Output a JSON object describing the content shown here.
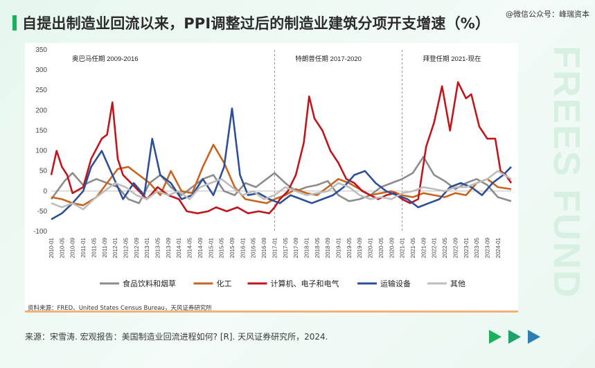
{
  "header": {
    "title": "自提出制造业回流以来，PPI调整过后的制造业建筑分项开支增速（%）"
  },
  "watermark": "@微信公众号：峰瑞资本",
  "side_text": "FREES FUND",
  "source_note": "资料来源：FRED、United  States Census Bureau，天风证券研究所",
  "footer": {
    "citation": "来源：宋雪涛. 宏观报告：美国制造业回流进程如何? [R]. 天风证券研究所，2024."
  },
  "colors": {
    "accent": "#19b25a",
    "arrow1": "#19b25a",
    "arrow2": "#1fa36a",
    "arrow3": "#2a7fb0"
  },
  "chart_data": {
    "type": "line",
    "ylim": [
      -100,
      350
    ],
    "yticks": [
      -100,
      -50,
      0,
      50,
      100,
      150,
      200,
      250,
      300,
      350
    ],
    "xticks": [
      "2010-01",
      "2010-05",
      "2010-09",
      "2011-01",
      "2011-05",
      "2011-09",
      "2012-01",
      "2012-05",
      "2012-09",
      "2013-01",
      "2013-05",
      "2013-09",
      "2014-01",
      "2014-05",
      "2014-09",
      "2015-01",
      "2015-05",
      "2015-09",
      "2016-01",
      "2016-05",
      "2016-09",
      "2017-01",
      "2017-05",
      "2017-09",
      "2018-01",
      "2018-05",
      "2018-09",
      "2019-01",
      "2019-05",
      "2019-09",
      "2020-01",
      "2020-05",
      "2020-09",
      "2021-01",
      "2021-05",
      "2021-09",
      "2022-01",
      "2022-05",
      "2022-09",
      "2023-01",
      "2023-05",
      "2023-09",
      "2024-01"
    ],
    "periods": [
      {
        "label": "奥巴马任期 2009-2016",
        "start": "2010-01"
      },
      {
        "label": "特朗普任期 2017-2020",
        "start": "2017-01"
      },
      {
        "label": "拜登任期 2021-现在",
        "start": "2021-01"
      }
    ],
    "x_start": "2010-01",
    "x_end": "2024-06",
    "series": [
      {
        "name": "食品饮料和烟草",
        "color": "#8c8c8c",
        "points": [
          [
            "2010-01",
            -20
          ],
          [
            "2010-06",
            25
          ],
          [
            "2010-09",
            45
          ],
          [
            "2011-01",
            15
          ],
          [
            "2011-06",
            30
          ],
          [
            "2011-10",
            20
          ],
          [
            "2012-02",
            10
          ],
          [
            "2012-06",
            -20
          ],
          [
            "2012-10",
            -30
          ],
          [
            "2013-02",
            20
          ],
          [
            "2013-06",
            40
          ],
          [
            "2013-10",
            10
          ],
          [
            "2014-02",
            -10
          ],
          [
            "2014-06",
            10
          ],
          [
            "2014-10",
            30
          ],
          [
            "2015-02",
            40
          ],
          [
            "2015-06",
            0
          ],
          [
            "2015-10",
            -10
          ],
          [
            "2016-02",
            20
          ],
          [
            "2016-06",
            10
          ],
          [
            "2016-10",
            30
          ],
          [
            "2017-01",
            45
          ],
          [
            "2017-05",
            20
          ],
          [
            "2017-09",
            0
          ],
          [
            "2018-01",
            10
          ],
          [
            "2018-05",
            15
          ],
          [
            "2018-09",
            25
          ],
          [
            "2019-01",
            -10
          ],
          [
            "2019-05",
            -25
          ],
          [
            "2019-09",
            -20
          ],
          [
            "2020-01",
            -10
          ],
          [
            "2020-05",
            10
          ],
          [
            "2020-09",
            20
          ],
          [
            "2021-01",
            30
          ],
          [
            "2021-05",
            45
          ],
          [
            "2021-09",
            85
          ],
          [
            "2022-01",
            40
          ],
          [
            "2022-05",
            25
          ],
          [
            "2022-09",
            5
          ],
          [
            "2023-01",
            20
          ],
          [
            "2023-05",
            30
          ],
          [
            "2023-09",
            15
          ],
          [
            "2024-01",
            -15
          ],
          [
            "2024-06",
            -25
          ]
        ]
      },
      {
        "name": "化工",
        "color": "#c8641e",
        "points": [
          [
            "2010-01",
            -15
          ],
          [
            "2010-05",
            -20
          ],
          [
            "2010-09",
            -30
          ],
          [
            "2011-01",
            -35
          ],
          [
            "2011-06",
            -15
          ],
          [
            "2011-10",
            20
          ],
          [
            "2012-02",
            55
          ],
          [
            "2012-06",
            60
          ],
          [
            "2012-10",
            40
          ],
          [
            "2013-02",
            20
          ],
          [
            "2013-06",
            -10
          ],
          [
            "2013-10",
            50
          ],
          [
            "2014-02",
            0
          ],
          [
            "2014-06",
            -5
          ],
          [
            "2014-10",
            60
          ],
          [
            "2015-02",
            115
          ],
          [
            "2015-06",
            70
          ],
          [
            "2015-10",
            10
          ],
          [
            "2016-02",
            -20
          ],
          [
            "2016-06",
            -25
          ],
          [
            "2016-10",
            -30
          ],
          [
            "2017-01",
            -20
          ],
          [
            "2017-05",
            -10
          ],
          [
            "2017-09",
            5
          ],
          [
            "2018-01",
            -5
          ],
          [
            "2018-05",
            -10
          ],
          [
            "2018-09",
            10
          ],
          [
            "2019-01",
            30
          ],
          [
            "2019-05",
            20
          ],
          [
            "2019-09",
            5
          ],
          [
            "2020-01",
            -10
          ],
          [
            "2020-05",
            -5
          ],
          [
            "2020-09",
            0
          ],
          [
            "2021-01",
            -10
          ],
          [
            "2021-05",
            -15
          ],
          [
            "2021-09",
            -5
          ],
          [
            "2022-01",
            -10
          ],
          [
            "2022-05",
            -15
          ],
          [
            "2022-09",
            -5
          ],
          [
            "2023-01",
            -10
          ],
          [
            "2023-05",
            20
          ],
          [
            "2023-09",
            30
          ],
          [
            "2024-01",
            10
          ],
          [
            "2024-06",
            5
          ]
        ]
      },
      {
        "name": "计算机、电子和电气",
        "color": "#c0151c",
        "points": [
          [
            "2010-01",
            40
          ],
          [
            "2010-03",
            100
          ],
          [
            "2010-05",
            60
          ],
          [
            "2010-07",
            40
          ],
          [
            "2010-09",
            -5
          ],
          [
            "2011-01",
            10
          ],
          [
            "2011-04",
            80
          ],
          [
            "2011-08",
            130
          ],
          [
            "2011-10",
            140
          ],
          [
            "2011-12",
            220
          ],
          [
            "2012-02",
            80
          ],
          [
            "2012-04",
            40
          ],
          [
            "2012-07",
            20
          ],
          [
            "2012-10",
            0
          ],
          [
            "2013-01",
            -20
          ],
          [
            "2013-05",
            10
          ],
          [
            "2013-09",
            -10
          ],
          [
            "2014-01",
            -20
          ],
          [
            "2014-04",
            -50
          ],
          [
            "2014-08",
            -55
          ],
          [
            "2014-12",
            -50
          ],
          [
            "2015-03",
            -40
          ],
          [
            "2015-07",
            -50
          ],
          [
            "2015-11",
            -40
          ],
          [
            "2016-03",
            -55
          ],
          [
            "2016-07",
            -50
          ],
          [
            "2016-11",
            -55
          ],
          [
            "2017-01",
            -40
          ],
          [
            "2017-03",
            -20
          ],
          [
            "2017-06",
            0
          ],
          [
            "2017-09",
            40
          ],
          [
            "2017-12",
            120
          ],
          [
            "2018-02",
            235
          ],
          [
            "2018-04",
            180
          ],
          [
            "2018-07",
            150
          ],
          [
            "2018-10",
            100
          ],
          [
            "2019-01",
            70
          ],
          [
            "2019-04",
            30
          ],
          [
            "2019-07",
            20
          ],
          [
            "2019-10",
            0
          ],
          [
            "2020-01",
            -10
          ],
          [
            "2020-04",
            -20
          ],
          [
            "2020-07",
            -10
          ],
          [
            "2020-10",
            -5
          ],
          [
            "2021-01",
            -20
          ],
          [
            "2021-04",
            -30
          ],
          [
            "2021-07",
            -20
          ],
          [
            "2021-10",
            110
          ],
          [
            "2022-01",
            170
          ],
          [
            "2022-04",
            260
          ],
          [
            "2022-07",
            150
          ],
          [
            "2022-10",
            270
          ],
          [
            "2023-01",
            230
          ],
          [
            "2023-03",
            240
          ],
          [
            "2023-06",
            160
          ],
          [
            "2023-09",
            130
          ],
          [
            "2023-12",
            130
          ],
          [
            "2024-02",
            50
          ],
          [
            "2024-04",
            40
          ],
          [
            "2024-06",
            20
          ]
        ]
      },
      {
        "name": "运输设备",
        "color": "#2d4f95",
        "points": [
          [
            "2010-01",
            -70
          ],
          [
            "2010-05",
            -55
          ],
          [
            "2010-09",
            -30
          ],
          [
            "2011-01",
            0
          ],
          [
            "2011-04",
            60
          ],
          [
            "2011-08",
            100
          ],
          [
            "2011-12",
            40
          ],
          [
            "2012-04",
            -20
          ],
          [
            "2012-08",
            20
          ],
          [
            "2012-12",
            -10
          ],
          [
            "2013-03",
            130
          ],
          [
            "2013-06",
            40
          ],
          [
            "2013-10",
            20
          ],
          [
            "2014-02",
            -20
          ],
          [
            "2014-06",
            -10
          ],
          [
            "2014-10",
            30
          ],
          [
            "2015-02",
            -10
          ],
          [
            "2015-06",
            60
          ],
          [
            "2015-09",
            205
          ],
          [
            "2015-12",
            40
          ],
          [
            "2016-03",
            -10
          ],
          [
            "2016-07",
            -5
          ],
          [
            "2016-11",
            -20
          ],
          [
            "2017-03",
            -30
          ],
          [
            "2017-07",
            -10
          ],
          [
            "2017-11",
            -20
          ],
          [
            "2018-03",
            -30
          ],
          [
            "2018-07",
            -20
          ],
          [
            "2018-11",
            -10
          ],
          [
            "2019-03",
            10
          ],
          [
            "2019-07",
            40
          ],
          [
            "2019-11",
            50
          ],
          [
            "2020-03",
            20
          ],
          [
            "2020-07",
            0
          ],
          [
            "2020-11",
            -10
          ],
          [
            "2021-03",
            -20
          ],
          [
            "2021-07",
            -40
          ],
          [
            "2021-11",
            -30
          ],
          [
            "2022-03",
            -20
          ],
          [
            "2022-07",
            10
          ],
          [
            "2022-11",
            20
          ],
          [
            "2023-03",
            10
          ],
          [
            "2023-07",
            -10
          ],
          [
            "2023-11",
            20
          ],
          [
            "2024-03",
            40
          ],
          [
            "2024-06",
            60
          ]
        ]
      },
      {
        "name": "其他",
        "color": "#bdbdbd",
        "points": [
          [
            "2010-01",
            -30
          ],
          [
            "2010-05",
            -40
          ],
          [
            "2010-09",
            -30
          ],
          [
            "2011-01",
            -45
          ],
          [
            "2011-05",
            -20
          ],
          [
            "2011-09",
            0
          ],
          [
            "2012-01",
            20
          ],
          [
            "2012-05",
            10
          ],
          [
            "2012-09",
            -10
          ],
          [
            "2013-01",
            -20
          ],
          [
            "2013-05",
            0
          ],
          [
            "2013-09",
            -10
          ],
          [
            "2014-01",
            0
          ],
          [
            "2014-05",
            -20
          ],
          [
            "2014-09",
            10
          ],
          [
            "2015-01",
            20
          ],
          [
            "2015-05",
            30
          ],
          [
            "2015-09",
            10
          ],
          [
            "2016-01",
            -10
          ],
          [
            "2016-05",
            0
          ],
          [
            "2016-09",
            -20
          ],
          [
            "2017-01",
            -10
          ],
          [
            "2017-05",
            10
          ],
          [
            "2017-09",
            0
          ],
          [
            "2018-01",
            -10
          ],
          [
            "2018-05",
            -5
          ],
          [
            "2018-09",
            0
          ],
          [
            "2019-01",
            20
          ],
          [
            "2019-05",
            10
          ],
          [
            "2019-09",
            -10
          ],
          [
            "2020-01",
            -20
          ],
          [
            "2020-05",
            -15
          ],
          [
            "2020-09",
            -20
          ],
          [
            "2021-01",
            -5
          ],
          [
            "2021-05",
            0
          ],
          [
            "2021-09",
            10
          ],
          [
            "2022-01",
            5
          ],
          [
            "2022-05",
            0
          ],
          [
            "2022-09",
            10
          ],
          [
            "2023-01",
            10
          ],
          [
            "2023-05",
            20
          ],
          [
            "2023-09",
            30
          ],
          [
            "2024-01",
            50
          ],
          [
            "2024-06",
            30
          ]
        ]
      }
    ]
  }
}
